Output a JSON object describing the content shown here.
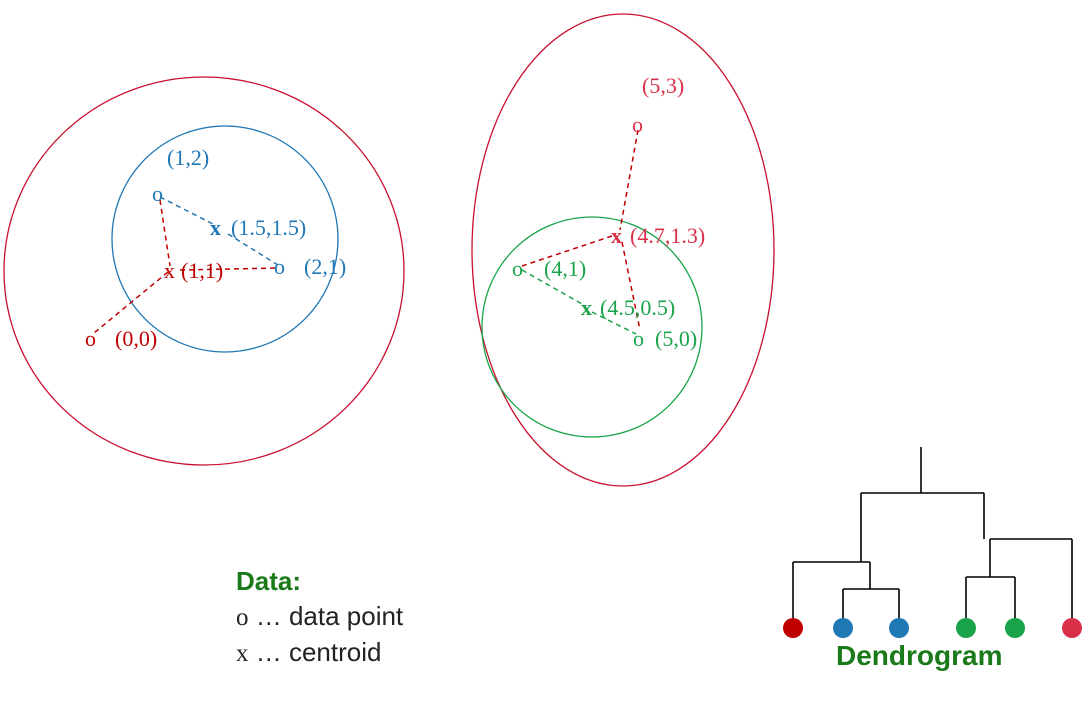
{
  "colors": {
    "red": "#c00000",
    "blue": "#1f77b4",
    "green": "#1aa34a",
    "pink": "#d9304a",
    "ellipse_red": "#c8102e",
    "legend_green": "#1a7a1a",
    "line": "#000000"
  },
  "points": {
    "p12": {
      "marker": "o",
      "label": "(1,2)"
    },
    "p21": {
      "marker": "o",
      "label": "(2,1)"
    },
    "p00": {
      "marker": "o",
      "label": "(0,0)"
    },
    "p53": {
      "marker": "o",
      "label": "(5,3)"
    },
    "p41": {
      "marker": "o",
      "label": "(4,1)"
    },
    "p50": {
      "marker": "o",
      "label": "(5,0)"
    }
  },
  "centroids": {
    "c1515": {
      "marker": "x",
      "label": "(1.5,1.5)"
    },
    "c11": {
      "marker": "x",
      "label": "(1,1)"
    },
    "c4713": {
      "marker": "x",
      "label": "(4.7,1.3)"
    },
    "c4505": {
      "marker": "x",
      "label": "(4.5,0.5)"
    }
  },
  "legend": {
    "title": "Data:",
    "point_symbol": "o",
    "point_text": " … data point",
    "centroid_symbol": "x",
    "centroid_text": " … centroid"
  },
  "dendrogram": {
    "title": "Dendrogram",
    "leaves": [
      "red",
      "blue",
      "blue",
      "green",
      "green",
      "pink"
    ]
  }
}
